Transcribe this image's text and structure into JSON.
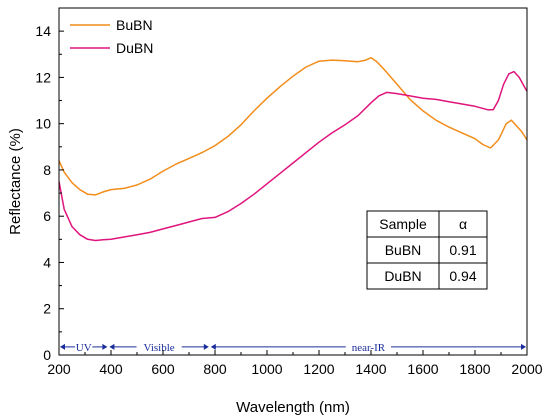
{
  "chart_data": {
    "type": "line",
    "title": "",
    "xlabel": "Wavelength (nm)",
    "ylabel": "Reflectance (%)",
    "xlim": [
      200,
      2000
    ],
    "ylim": [
      0,
      15
    ],
    "xticks": [
      200,
      400,
      600,
      800,
      1000,
      1200,
      1400,
      1600,
      1800,
      2000
    ],
    "yticks": [
      0,
      2,
      4,
      6,
      8,
      10,
      12,
      14
    ],
    "grid": false,
    "legend_position": "top-left",
    "series": [
      {
        "name": "BuBN",
        "color": "#f28c1a",
        "x": [
          200,
          220,
          250,
          280,
          310,
          340,
          370,
          400,
          450,
          500,
          550,
          600,
          650,
          700,
          750,
          800,
          850,
          900,
          950,
          1000,
          1050,
          1100,
          1150,
          1200,
          1250,
          1300,
          1350,
          1380,
          1400,
          1420,
          1450,
          1500,
          1550,
          1600,
          1650,
          1700,
          1750,
          1800,
          1830,
          1860,
          1890,
          1920,
          1940,
          1960,
          1980,
          2000
        ],
        "y": [
          8.4,
          7.9,
          7.45,
          7.15,
          6.95,
          6.92,
          7.05,
          7.15,
          7.2,
          7.35,
          7.6,
          7.95,
          8.25,
          8.5,
          8.75,
          9.05,
          9.45,
          9.95,
          10.55,
          11.1,
          11.6,
          12.05,
          12.45,
          12.7,
          12.75,
          12.72,
          12.68,
          12.75,
          12.85,
          12.7,
          12.35,
          11.7,
          11.05,
          10.55,
          10.15,
          9.85,
          9.6,
          9.35,
          9.1,
          8.95,
          9.3,
          10.0,
          10.15,
          9.9,
          9.65,
          9.3
        ]
      },
      {
        "name": "DuBN",
        "color": "#e0147d",
        "x": [
          200,
          220,
          250,
          280,
          310,
          340,
          370,
          400,
          450,
          500,
          550,
          600,
          650,
          700,
          750,
          800,
          850,
          900,
          950,
          1000,
          1050,
          1100,
          1150,
          1200,
          1250,
          1300,
          1350,
          1400,
          1430,
          1460,
          1500,
          1550,
          1600,
          1650,
          1700,
          1750,
          1800,
          1850,
          1870,
          1890,
          1910,
          1930,
          1950,
          1970,
          1990,
          2000
        ],
        "y": [
          7.5,
          6.3,
          5.55,
          5.2,
          5.0,
          4.95,
          4.98,
          5.0,
          5.1,
          5.2,
          5.3,
          5.45,
          5.6,
          5.75,
          5.9,
          5.95,
          6.2,
          6.55,
          6.95,
          7.4,
          7.85,
          8.3,
          8.75,
          9.2,
          9.6,
          9.95,
          10.35,
          10.9,
          11.2,
          11.35,
          11.3,
          11.2,
          11.1,
          11.05,
          10.95,
          10.85,
          10.75,
          10.6,
          10.6,
          11.0,
          11.7,
          12.15,
          12.25,
          12.0,
          11.6,
          11.4
        ]
      }
    ],
    "annotations": {
      "regions": [
        {
          "label": "UV",
          "x_start": 200,
          "x_end": 390
        },
        {
          "label": "Visible",
          "x_start": 390,
          "x_end": 780
        },
        {
          "label": "near-IR",
          "x_start": 780,
          "x_end": 2000
        }
      ],
      "region_y": 0.35,
      "table": {
        "headers": [
          "Sample",
          "α"
        ],
        "rows": [
          [
            "BuBN",
            "0.91"
          ],
          [
            "DuBN",
            "0.94"
          ]
        ]
      }
    }
  }
}
